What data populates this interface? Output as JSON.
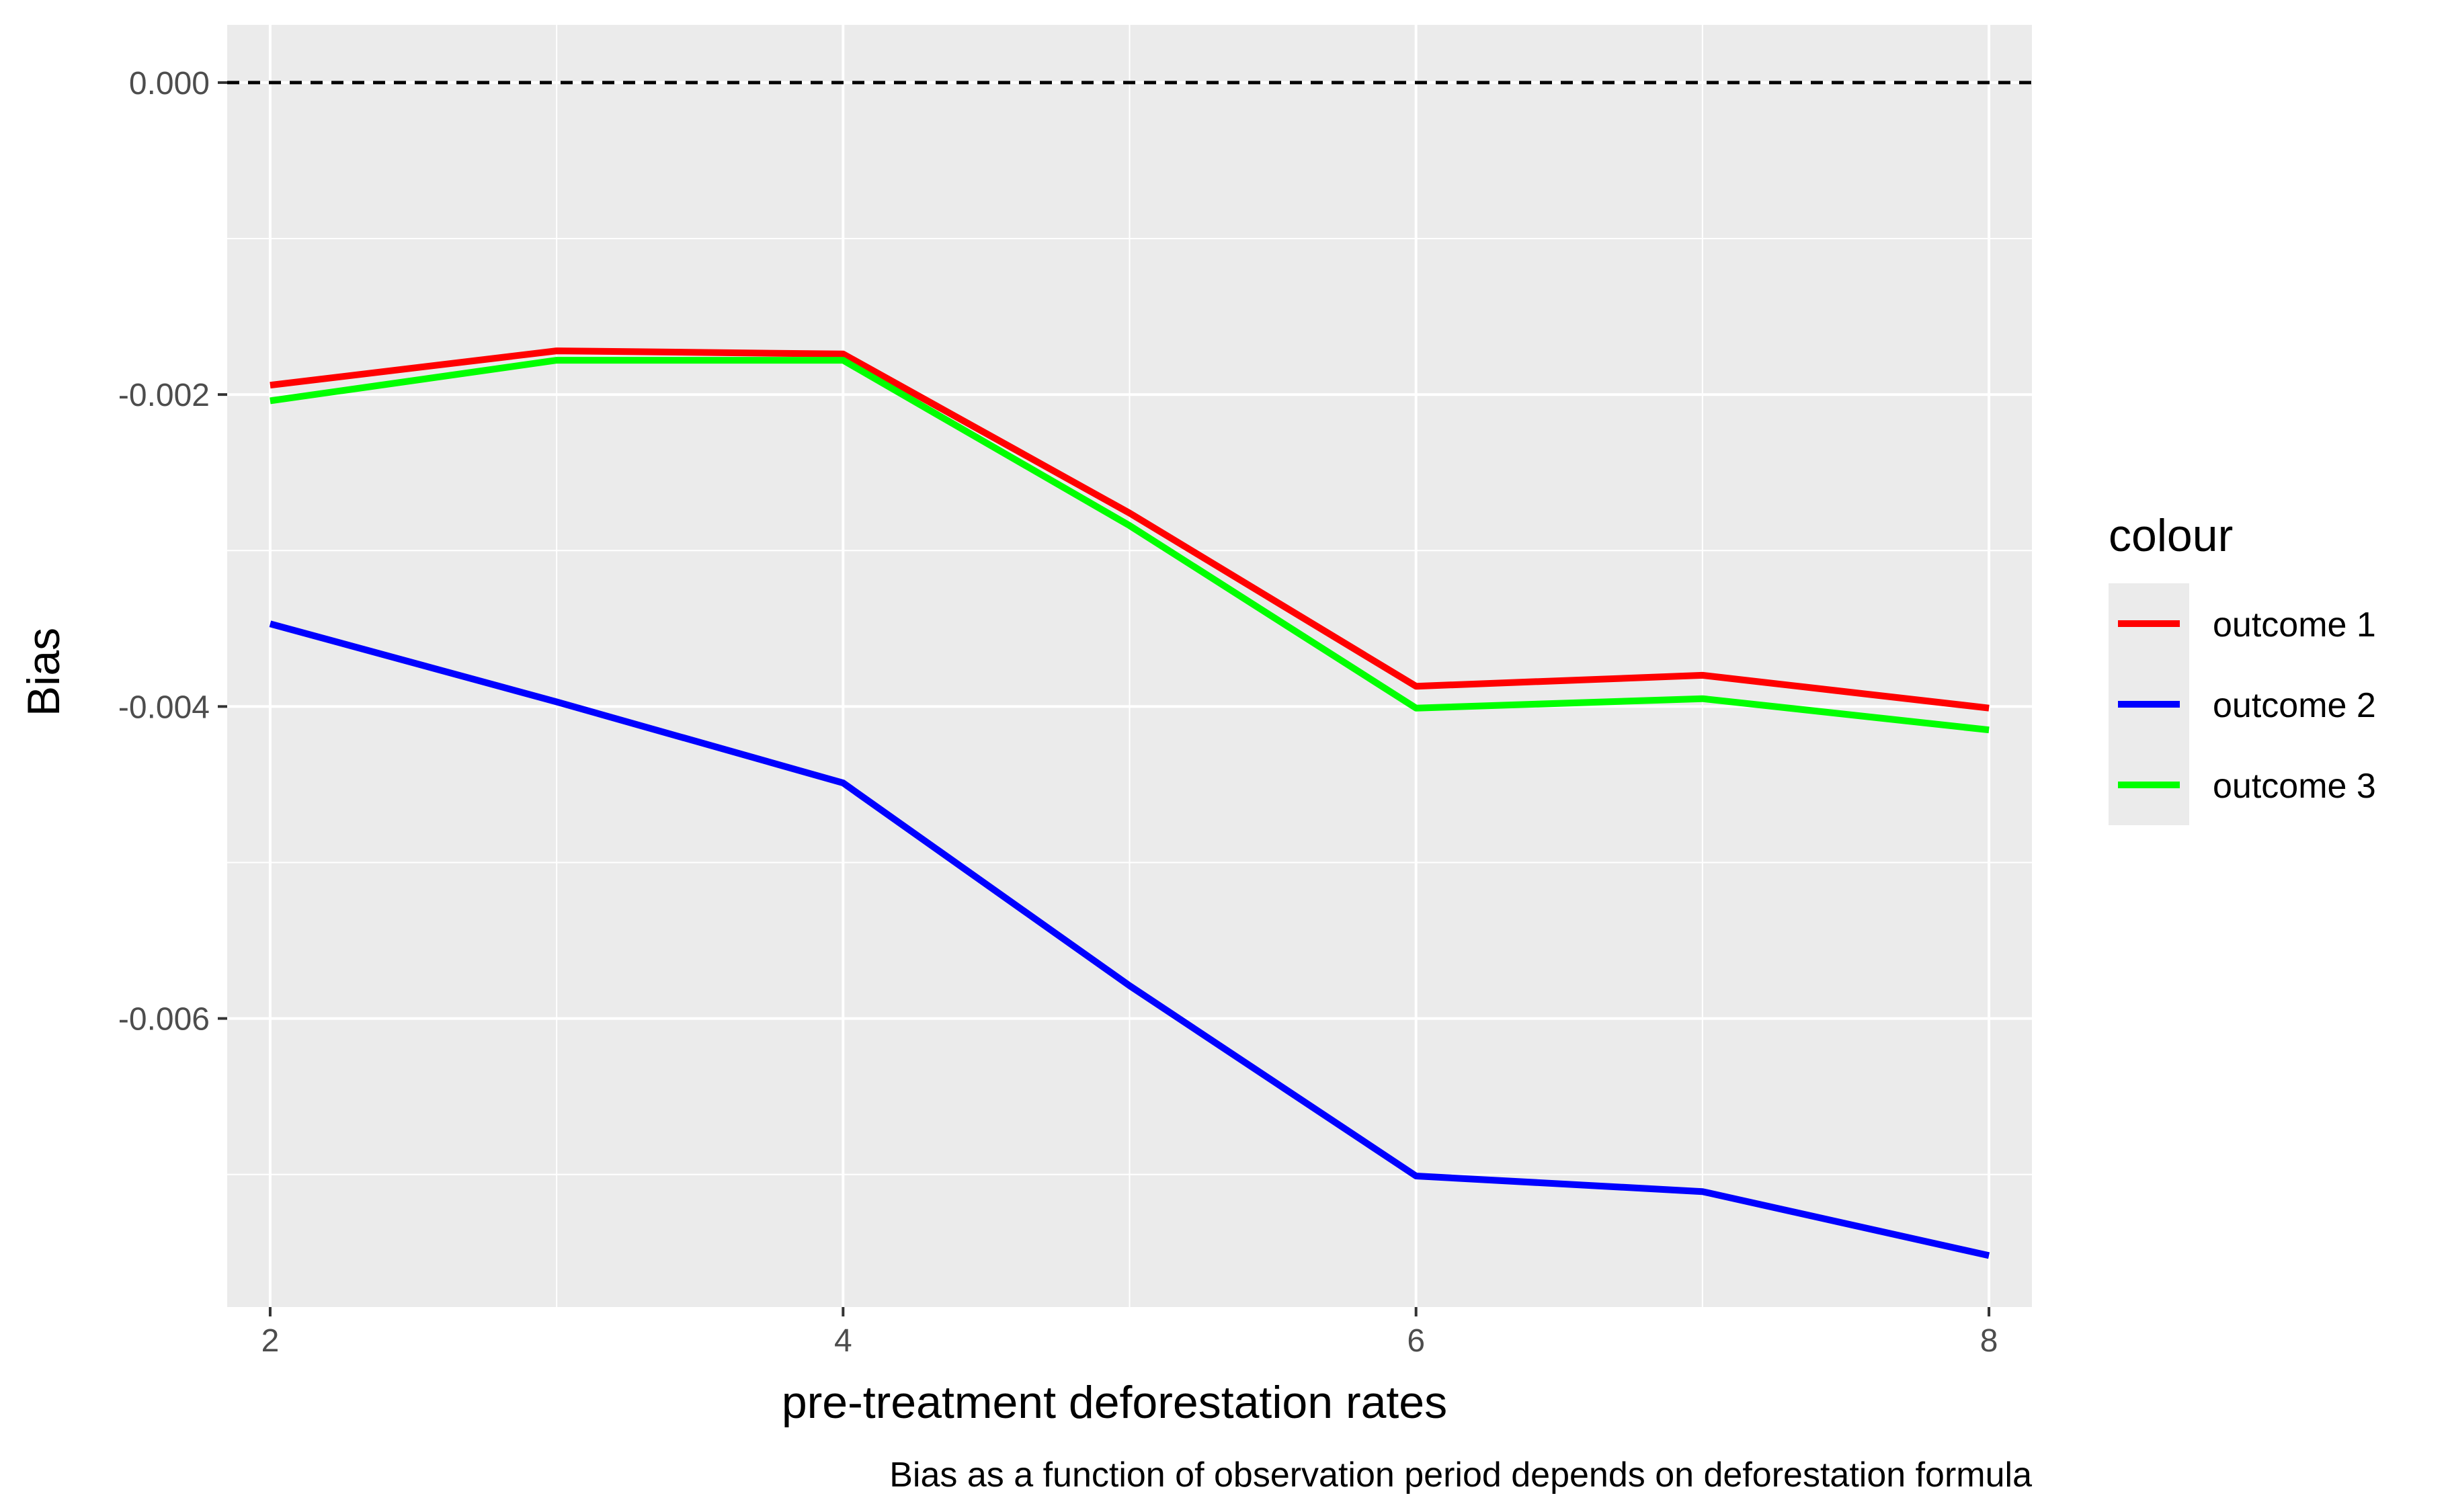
{
  "chart_data": {
    "type": "line",
    "title": "",
    "xlabel": "pre-treatment deforestation rates",
    "ylabel": "Bias",
    "caption": "Bias as a function of observation period depends on deforestation formula",
    "x": [
      2,
      3,
      4,
      5,
      6,
      7,
      8
    ],
    "xlim": [
      1.85,
      8.15
    ],
    "ylim": [
      -0.00785,
      0.00037
    ],
    "x_ticks": [
      "2",
      "4",
      "6",
      "8"
    ],
    "x_tick_values": [
      2,
      4,
      6,
      8
    ],
    "y_ticks": [
      "0.000",
      "-0.002",
      "-0.004",
      "-0.006"
    ],
    "y_tick_values": [
      0,
      -0.002,
      -0.004,
      -0.006
    ],
    "reference_line": {
      "y": 0,
      "style": "dashed",
      "color": "#000000"
    },
    "grid": true,
    "panel_background": "#ebebeb",
    "legend": {
      "title": "colour",
      "position": "right"
    },
    "series": [
      {
        "name": "outcome 1",
        "color": "#ff0000",
        "values": [
          -0.00194,
          -0.00172,
          -0.00174,
          -0.00276,
          -0.00387,
          -0.0038,
          -0.00401
        ]
      },
      {
        "name": "outcome 2",
        "color": "#0000ff",
        "values": [
          -0.00347,
          -0.00397,
          -0.00449,
          -0.00579,
          -0.00701,
          -0.00711,
          -0.00752
        ]
      },
      {
        "name": "outcome 3",
        "color": "#00ff00",
        "values": [
          -0.00204,
          -0.00178,
          -0.00178,
          -0.00284,
          -0.00401,
          -0.00395,
          -0.00415
        ]
      }
    ]
  }
}
